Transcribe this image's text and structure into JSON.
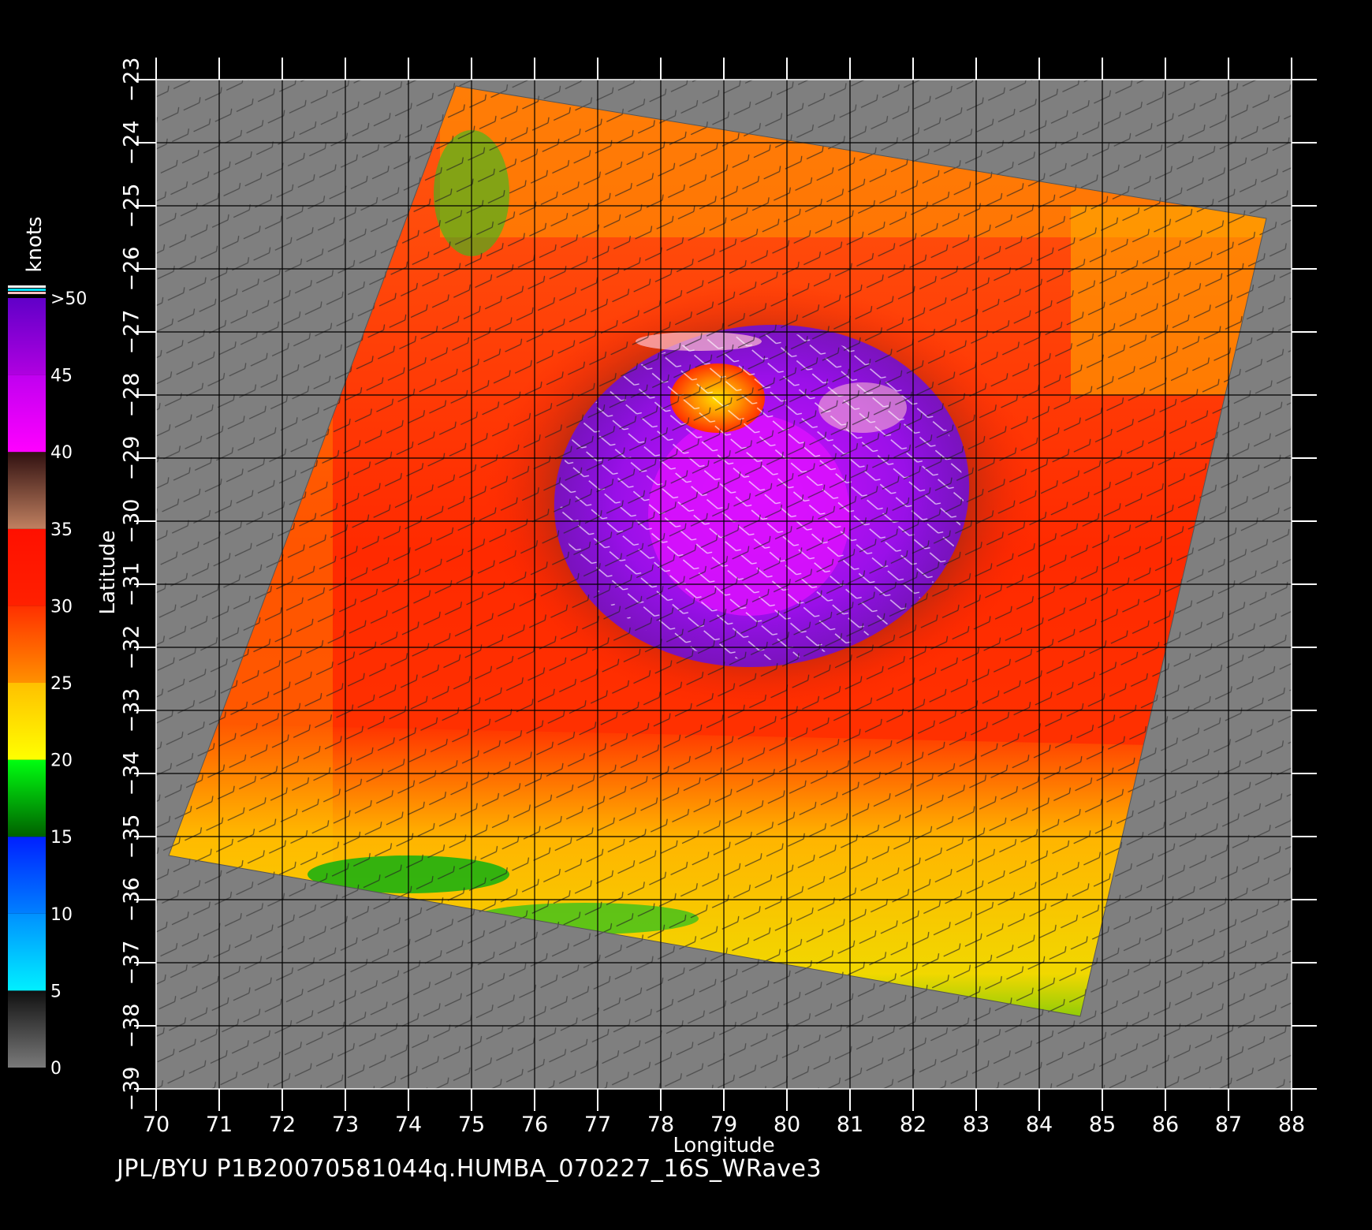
{
  "footer_text": "JPL/BYU  P1B20070581044q.HUMBA_070227_16S_WRave3",
  "colors": {
    "land_gray": "#7f7f7f",
    "grid": "#000000",
    "text": "#ffffff"
  },
  "chart_data": {
    "type": "heatmap",
    "xlabel": "Longitude",
    "ylabel": "Latitude",
    "xlim": [
      70,
      88
    ],
    "ylim": [
      -39,
      -23
    ],
    "x_ticks": [
      "70",
      "71",
      "72",
      "73",
      "74",
      "75",
      "76",
      "77",
      "78",
      "79",
      "80",
      "81",
      "82",
      "83",
      "84",
      "85",
      "86",
      "87",
      "88"
    ],
    "y_ticks": [
      "−23",
      "−24",
      "−25",
      "−26",
      "−27",
      "−28",
      "−29",
      "−30",
      "−31",
      "−32",
      "−33",
      "−34",
      "−35",
      "−36",
      "−37",
      "−38",
      "−39"
    ],
    "grid": true,
    "colorbar": {
      "unit_label": "knots",
      "labels": [
        "0",
        "5",
        "10",
        "15",
        "20",
        "25",
        "30",
        "35",
        "40",
        "45",
        ">50"
      ],
      "bands": [
        {
          "from": 0,
          "to": 5,
          "colors": [
            "#7a7a7a",
            "#101010"
          ]
        },
        {
          "from": 5,
          "to": 10,
          "colors": [
            "#00f0ff",
            "#0090ff"
          ]
        },
        {
          "from": 10,
          "to": 15,
          "colors": [
            "#0080ff",
            "#0020ff"
          ]
        },
        {
          "from": 15,
          "to": 20,
          "colors": [
            "#006000",
            "#00ff10"
          ]
        },
        {
          "from": 20,
          "to": 25,
          "colors": [
            "#ffff00",
            "#ffc000"
          ]
        },
        {
          "from": 25,
          "to": 30,
          "colors": [
            "#ff9000",
            "#ff3000"
          ]
        },
        {
          "from": 30,
          "to": 35,
          "colors": [
            "#ff2000",
            "#ff1000"
          ]
        },
        {
          "from": 35,
          "to": 40,
          "colors": [
            "#c08060",
            "#301010"
          ]
        },
        {
          "from": 40,
          "to": 45,
          "colors": [
            "#ff00ff",
            "#c000f0"
          ]
        },
        {
          "from": 45,
          "to": 50,
          "colors": [
            "#b000e0",
            "#6000c8"
          ]
        }
      ],
      "top_stripes": [
        "#ffffff",
        "#00e0ff",
        "#ffc0c0"
      ]
    },
    "swath_corners": [
      {
        "lon": 74.75,
        "lat": -23.1
      },
      {
        "lon": 87.6,
        "lat": -25.2
      },
      {
        "lon": 84.65,
        "lat": -37.85
      },
      {
        "lon": 70.2,
        "lat": -35.3
      }
    ],
    "storm_name": "HUMBA",
    "eye_center": {
      "lon": 78.9,
      "lat": -28.05
    },
    "max_wind_center": {
      "lon": 79.6,
      "lat": -29.6
    }
  }
}
